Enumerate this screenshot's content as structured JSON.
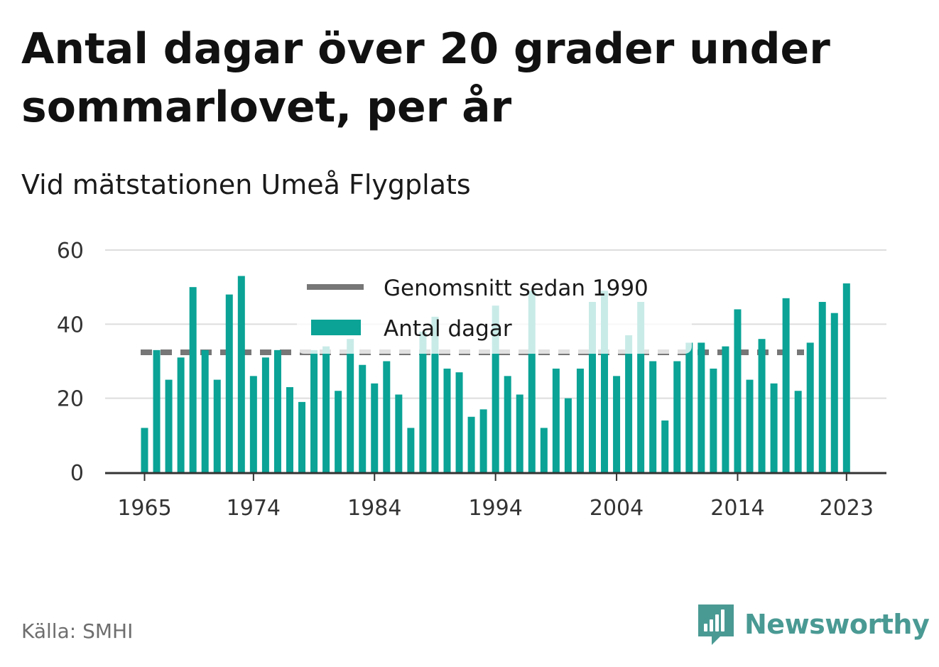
{
  "title": "Antal dagar över 20 grader under sommarlovet, per år",
  "subtitle": "Vid mätstationen Umeå Flygplats",
  "source": "Källa: SMHI",
  "brand": {
    "name": "Newsworthy",
    "icon": "bar-chart-speech-bubble-icon",
    "color": "#4a9a94"
  },
  "colors": {
    "bar": "#0aa396",
    "average": "#777777",
    "grid": "#dddddd",
    "axis": "#333333"
  },
  "chart_data": {
    "type": "bar",
    "x": [
      1965,
      1966,
      1967,
      1968,
      1969,
      1970,
      1971,
      1972,
      1973,
      1974,
      1975,
      1976,
      1977,
      1978,
      1979,
      1980,
      1981,
      1982,
      1983,
      1984,
      1985,
      1986,
      1987,
      1988,
      1989,
      1990,
      1991,
      1992,
      1993,
      1994,
      1995,
      1996,
      1997,
      1998,
      1999,
      2000,
      2001,
      2002,
      2003,
      2004,
      2005,
      2006,
      2007,
      2008,
      2009,
      2010,
      2011,
      2012,
      2013,
      2014,
      2015,
      2016,
      2017,
      2018,
      2019,
      2020,
      2021,
      2022,
      2023
    ],
    "series": [
      {
        "name": "Antal dagar",
        "values": [
          12,
          33,
          25,
          31,
          50,
          33,
          25,
          48,
          53,
          26,
          31,
          33,
          23,
          19,
          33,
          34,
          22,
          36,
          29,
          24,
          30,
          21,
          12,
          38,
          42,
          28,
          27,
          15,
          17,
          45,
          26,
          21,
          49,
          12,
          28,
          20,
          28,
          46,
          49,
          26,
          37,
          46,
          30,
          14,
          30,
          35,
          35,
          28,
          34,
          44,
          25,
          36,
          24,
          47,
          22,
          35,
          46,
          43,
          51
        ]
      }
    ],
    "average": {
      "name": "Genomsnitt sedan 1990",
      "value": 32.4
    },
    "x_ticks": [
      "1965",
      "1974",
      "1984",
      "1994",
      "2004",
      "2014",
      "2023"
    ],
    "y_ticks": [
      "0",
      "20",
      "40",
      "60"
    ],
    "ylim": [
      0,
      60
    ],
    "grid": true,
    "legend": "top-center"
  }
}
